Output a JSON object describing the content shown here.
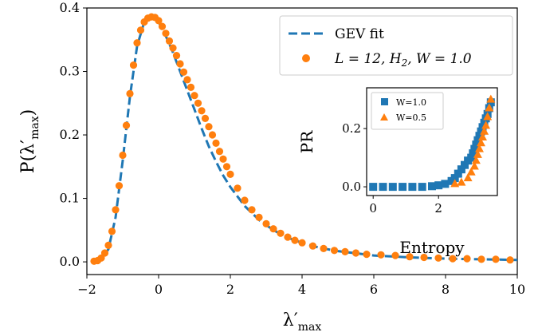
{
  "chart_data": [
    {
      "type": "line",
      "title": "",
      "xlabel": "λ′max",
      "ylabel": "P(λ′max)",
      "xlim": [
        -2,
        10
      ],
      "ylim": [
        -0.02,
        0.4
      ],
      "xticks": [
        -2,
        0,
        2,
        4,
        6,
        8,
        10
      ],
      "yticks": [
        0.0,
        0.1,
        0.2,
        0.3,
        0.4
      ],
      "xtick_labels": [
        "−2",
        "0",
        "2",
        "4",
        "6",
        "8",
        "10"
      ],
      "ytick_labels": [
        "0.0",
        "0.1",
        "0.2",
        "0.3",
        "0.4"
      ],
      "grid": false,
      "legend": "top-right",
      "series": [
        {
          "name": "GEV fit",
          "style": "dashed-line",
          "color": "#1f77b4",
          "x": [
            -1.8,
            -1.6,
            -1.4,
            -1.2,
            -1.0,
            -0.8,
            -0.6,
            -0.4,
            -0.2,
            -0.1,
            0.0,
            0.2,
            0.4,
            0.6,
            0.8,
            1.0,
            1.2,
            1.4,
            1.6,
            1.8,
            2.0,
            2.4,
            2.8,
            3.2,
            3.6,
            4.0,
            4.5,
            5.0,
            6.0,
            7.0,
            8.0,
            9.0,
            10.0
          ],
          "y": [
            0.0,
            0.004,
            0.02,
            0.07,
            0.16,
            0.26,
            0.34,
            0.378,
            0.386,
            0.384,
            0.378,
            0.356,
            0.33,
            0.3,
            0.27,
            0.24,
            0.21,
            0.182,
            0.158,
            0.136,
            0.118,
            0.088,
            0.066,
            0.05,
            0.038,
            0.03,
            0.022,
            0.017,
            0.01,
            0.007,
            0.005,
            0.004,
            0.003
          ]
        },
        {
          "name": "L = 12, H₂, W = 1.0",
          "style": "dots",
          "color": "#ff7f0e",
          "x": [
            -1.8,
            -1.7,
            -1.6,
            -1.5,
            -1.4,
            -1.3,
            -1.2,
            -1.1,
            -1.0,
            -0.9,
            -0.8,
            -0.7,
            -0.6,
            -0.5,
            -0.4,
            -0.3,
            -0.2,
            -0.1,
            0.0,
            0.1,
            0.2,
            0.3,
            0.4,
            0.5,
            0.6,
            0.7,
            0.8,
            0.9,
            1.0,
            1.1,
            1.2,
            1.3,
            1.4,
            1.5,
            1.6,
            1.7,
            1.8,
            1.9,
            2.0,
            2.2,
            2.4,
            2.6,
            2.8,
            3.0,
            3.2,
            3.4,
            3.6,
            3.8,
            4.0,
            4.3,
            4.6,
            4.9,
            5.2,
            5.5,
            5.8,
            6.2,
            6.6,
            7.0,
            7.4,
            7.8,
            8.2,
            8.6,
            9.0,
            9.4,
            9.8
          ],
          "y": [
            0.001,
            0.002,
            0.006,
            0.014,
            0.026,
            0.048,
            0.082,
            0.12,
            0.168,
            0.215,
            0.265,
            0.31,
            0.345,
            0.365,
            0.378,
            0.384,
            0.386,
            0.385,
            0.38,
            0.371,
            0.36,
            0.348,
            0.337,
            0.325,
            0.312,
            0.299,
            0.287,
            0.275,
            0.262,
            0.25,
            0.238,
            0.226,
            0.213,
            0.2,
            0.187,
            0.174,
            0.162,
            0.15,
            0.138,
            0.116,
            0.097,
            0.082,
            0.07,
            0.06,
            0.052,
            0.045,
            0.039,
            0.034,
            0.03,
            0.025,
            0.021,
            0.018,
            0.016,
            0.014,
            0.012,
            0.011,
            0.01,
            0.008,
            0.007,
            0.006,
            0.005,
            0.005,
            0.004,
            0.004,
            0.003
          ]
        }
      ]
    },
    {
      "type": "scatter",
      "title": "",
      "xlabel": "Entropy",
      "ylabel": "PR",
      "xlim": [
        -0.2,
        3.8
      ],
      "ylim": [
        -0.03,
        0.34
      ],
      "xticks": [
        0,
        2
      ],
      "yticks": [
        0.0,
        0.2
      ],
      "xtick_labels": [
        "0",
        "2"
      ],
      "ytick_labels": [
        "0.0",
        "0.2"
      ],
      "grid": false,
      "legend": "top-left",
      "series": [
        {
          "name": "W=1.0",
          "marker": "square",
          "color": "#1f77b4",
          "x": [
            0.0,
            0.3,
            0.6,
            0.9,
            1.2,
            1.5,
            1.8,
            2.0,
            2.2,
            2.4,
            2.5,
            2.6,
            2.7,
            2.8,
            2.9,
            3.0,
            3.05,
            3.1,
            3.15,
            3.2,
            3.25,
            3.3,
            3.35,
            3.4,
            3.45,
            3.5,
            3.55,
            3.6
          ],
          "y": [
            0.0,
            0.0,
            0.0,
            0.0,
            0.0,
            0.0,
            0.002,
            0.005,
            0.01,
            0.02,
            0.03,
            0.045,
            0.06,
            0.075,
            0.09,
            0.1,
            0.115,
            0.13,
            0.145,
            0.16,
            0.175,
            0.19,
            0.205,
            0.22,
            0.235,
            0.25,
            0.27,
            0.29
          ]
        },
        {
          "name": "W=0.5",
          "marker": "triangle",
          "color": "#ff7f0e",
          "x": [
            2.5,
            2.7,
            2.9,
            3.0,
            3.1,
            3.15,
            3.2,
            3.25,
            3.3,
            3.35,
            3.4,
            3.45,
            3.5,
            3.55,
            3.6
          ],
          "y": [
            0.01,
            0.015,
            0.03,
            0.05,
            0.07,
            0.09,
            0.11,
            0.13,
            0.15,
            0.17,
            0.19,
            0.21,
            0.24,
            0.27,
            0.3
          ]
        }
      ]
    }
  ]
}
